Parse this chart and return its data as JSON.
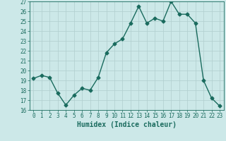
{
  "x": [
    0,
    1,
    2,
    3,
    4,
    5,
    6,
    7,
    8,
    9,
    10,
    11,
    12,
    13,
    14,
    15,
    16,
    17,
    18,
    19,
    20,
    21,
    22,
    23
  ],
  "y": [
    19.2,
    19.5,
    19.3,
    17.7,
    16.5,
    17.5,
    18.2,
    18.0,
    19.3,
    21.8,
    22.7,
    23.2,
    24.8,
    26.5,
    24.8,
    25.3,
    25.0,
    27.0,
    25.7,
    25.7,
    24.8,
    19.0,
    17.2,
    16.4
  ],
  "line_color": "#1a6b5e",
  "marker": "D",
  "markersize": 2.5,
  "linewidth": 1.0,
  "bg_color": "#cce8e8",
  "grid_color": "#b0cece",
  "xlabel": "Humidex (Indice chaleur)",
  "ylim": [
    16,
    27
  ],
  "xlim": [
    -0.5,
    23.5
  ],
  "yticks": [
    16,
    17,
    18,
    19,
    20,
    21,
    22,
    23,
    24,
    25,
    26,
    27
  ],
  "xticks": [
    0,
    1,
    2,
    3,
    4,
    5,
    6,
    7,
    8,
    9,
    10,
    11,
    12,
    13,
    14,
    15,
    16,
    17,
    18,
    19,
    20,
    21,
    22,
    23
  ],
  "tick_fontsize": 5.5,
  "xlabel_fontsize": 7.0
}
